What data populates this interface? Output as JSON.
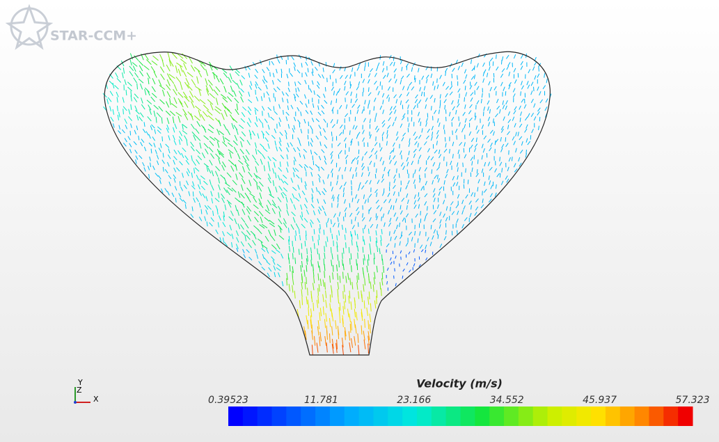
{
  "logo": {
    "text": "STAR-CCM+"
  },
  "legend": {
    "title": "Velocity (m/s)",
    "ticks": [
      0.39523,
      11.781,
      23.166,
      34.552,
      45.937,
      57.323
    ]
  },
  "triad": {
    "y": "Y",
    "z": "Z",
    "x": "X"
  }
}
